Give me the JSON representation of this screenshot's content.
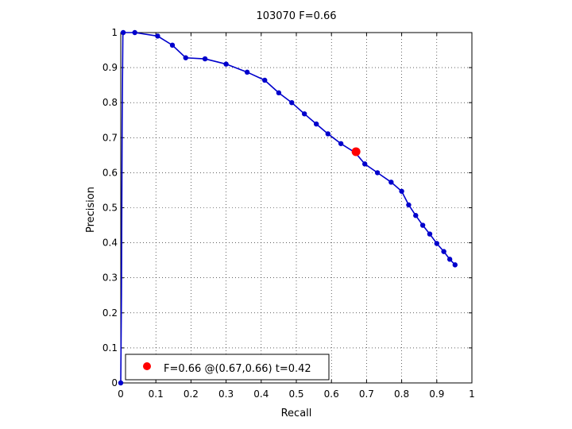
{
  "chart_data": {
    "type": "line",
    "title": "103070 F=0.66",
    "xlabel": "Recall",
    "ylabel": "Precision",
    "xlim": [
      0,
      1
    ],
    "ylim": [
      0,
      1
    ],
    "x_ticks": [
      "0",
      "0.1",
      "0.2",
      "0.3",
      "0.4",
      "0.5",
      "0.6",
      "0.7",
      "0.8",
      "0.9",
      "1"
    ],
    "y_ticks": [
      "0",
      "0.1",
      "0.2",
      "0.3",
      "0.4",
      "0.5",
      "0.6",
      "0.7",
      "0.8",
      "0.9",
      "1"
    ],
    "grid": true,
    "series": [
      {
        "color": "#0000cc",
        "curve": [
          [
            0.0,
            0.0
          ],
          [
            0.002,
            0.25
          ],
          [
            0.004,
            0.75
          ],
          [
            0.006,
            0.99
          ],
          [
            0.007,
            1.0
          ],
          [
            0.04,
            1.0
          ],
          [
            0.105,
            0.99
          ],
          [
            0.147,
            0.964
          ],
          [
            0.185,
            0.928
          ],
          [
            0.24,
            0.925
          ],
          [
            0.3,
            0.91
          ],
          [
            0.36,
            0.887
          ],
          [
            0.41,
            0.864
          ],
          [
            0.45,
            0.828
          ],
          [
            0.487,
            0.8
          ],
          [
            0.523,
            0.768
          ],
          [
            0.557,
            0.739
          ],
          [
            0.59,
            0.711
          ],
          [
            0.627,
            0.683
          ],
          [
            0.668,
            0.657
          ],
          [
            0.695,
            0.625
          ],
          [
            0.731,
            0.6
          ],
          [
            0.77,
            0.573
          ],
          [
            0.8,
            0.547
          ],
          [
            0.82,
            0.508
          ],
          [
            0.84,
            0.478
          ],
          [
            0.86,
            0.45
          ],
          [
            0.88,
            0.425
          ],
          [
            0.9,
            0.398
          ],
          [
            0.92,
            0.375
          ],
          [
            0.937,
            0.353
          ],
          [
            0.952,
            0.337
          ]
        ],
        "points": [
          [
            0.0,
            0.0
          ],
          [
            0.007,
            1.0
          ],
          [
            0.04,
            1.0
          ],
          [
            0.105,
            0.99
          ],
          [
            0.147,
            0.964
          ],
          [
            0.185,
            0.928
          ],
          [
            0.24,
            0.925
          ],
          [
            0.3,
            0.91
          ],
          [
            0.36,
            0.887
          ],
          [
            0.41,
            0.864
          ],
          [
            0.45,
            0.828
          ],
          [
            0.487,
            0.8
          ],
          [
            0.523,
            0.768
          ],
          [
            0.557,
            0.739
          ],
          [
            0.59,
            0.711
          ],
          [
            0.627,
            0.683
          ],
          [
            0.668,
            0.657
          ],
          [
            0.695,
            0.625
          ],
          [
            0.731,
            0.6
          ],
          [
            0.77,
            0.573
          ],
          [
            0.8,
            0.547
          ],
          [
            0.82,
            0.508
          ],
          [
            0.84,
            0.478
          ],
          [
            0.86,
            0.45
          ],
          [
            0.88,
            0.425
          ],
          [
            0.9,
            0.398
          ],
          [
            0.92,
            0.375
          ],
          [
            0.937,
            0.353
          ],
          [
            0.952,
            0.337
          ]
        ]
      }
    ],
    "highlight": {
      "x": 0.67,
      "y": 0.66,
      "color": "#ff0000"
    },
    "legend": {
      "position": "bottom-left",
      "text": "F=0.66 @(0.67,0.66) t=0.42",
      "marker_color": "#ff0000"
    }
  }
}
